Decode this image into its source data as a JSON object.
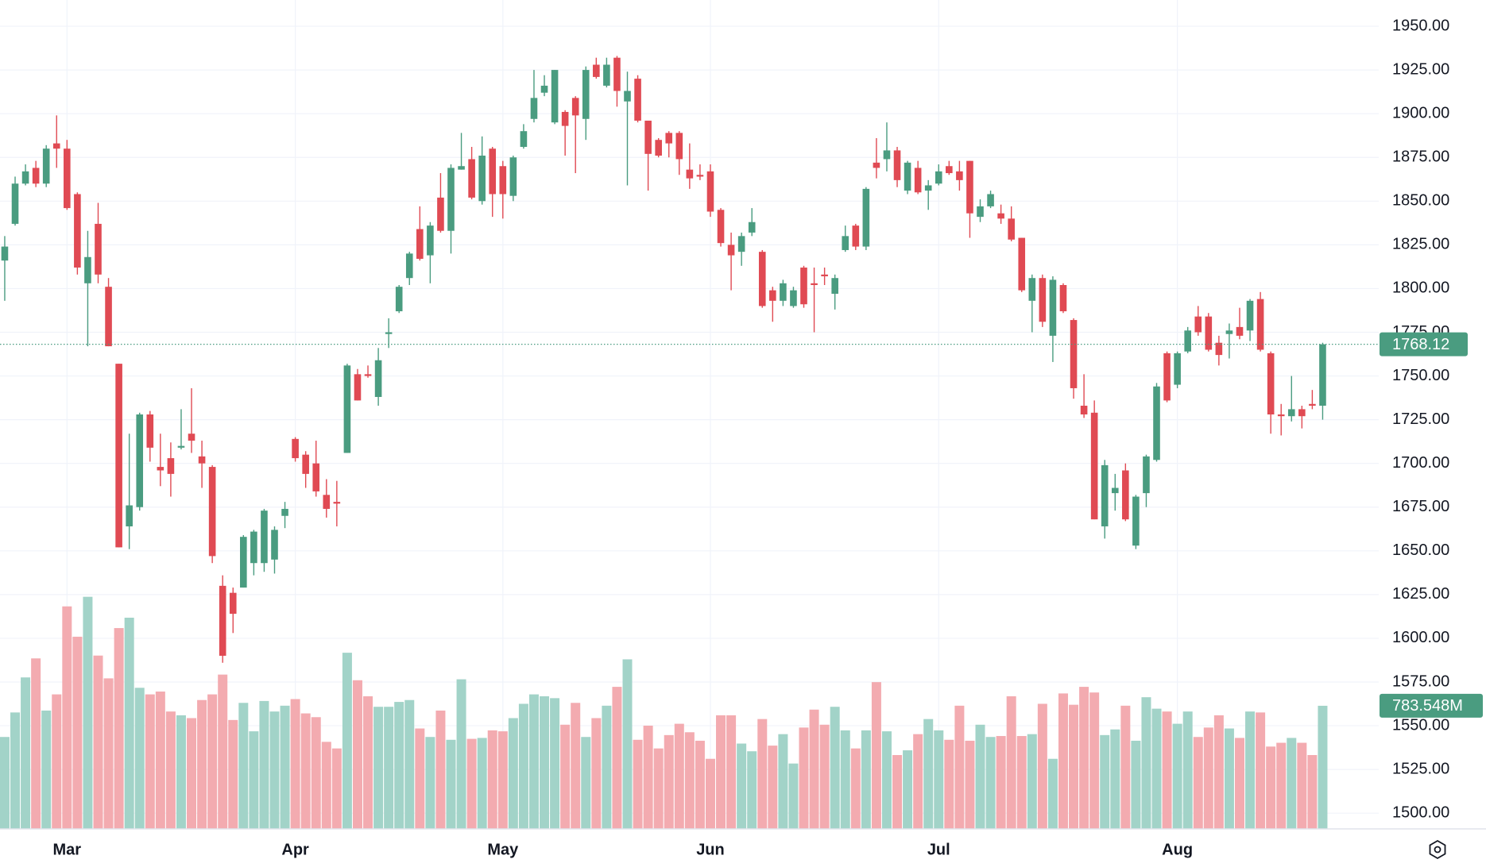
{
  "chart_data": {
    "type": "candlestick",
    "categories": [
      null,
      null,
      null,
      null,
      null,
      null,
      "Mar",
      null,
      null,
      null,
      null,
      null,
      null,
      null,
      null,
      null,
      null,
      null,
      null,
      null,
      null,
      null,
      null,
      null,
      null,
      null,
      null,
      null,
      "Apr",
      null,
      null,
      null,
      null,
      null,
      null,
      null,
      null,
      null,
      null,
      null,
      null,
      null,
      null,
      null,
      null,
      null,
      null,
      null,
      "May",
      null,
      null,
      null,
      null,
      null,
      null,
      null,
      null,
      null,
      null,
      null,
      null,
      null,
      null,
      null,
      null,
      null,
      null,
      null,
      "Jun",
      null,
      null,
      null,
      null,
      null,
      null,
      null,
      null,
      null,
      null,
      null,
      null,
      null,
      null,
      null,
      null,
      null,
      null,
      null,
      null,
      null,
      "Jul",
      null,
      null,
      null,
      null,
      null,
      null,
      null,
      null,
      null,
      null,
      null,
      null,
      null,
      null,
      null,
      null,
      null,
      null,
      null,
      null,
      null,
      null,
      "Aug",
      null,
      null,
      null,
      null,
      null,
      null,
      null,
      null,
      null,
      null,
      null,
      null,
      null,
      null
    ],
    "open": [
      1816,
      1837,
      1860,
      1869,
      1860,
      1883,
      1880,
      1854,
      1803,
      1837,
      1801,
      1757,
      1664,
      1675,
      1728,
      1698,
      1703,
      1709,
      1717,
      1704,
      1698,
      1630,
      1626,
      1629,
      1643,
      1643,
      1645,
      1670,
      1714,
      1705,
      1700,
      1682,
      1678,
      1706,
      1751,
      1751,
      1738,
      1774,
      1787,
      1806,
      1834,
      1819,
      1852,
      1833,
      1868,
      1874,
      1850,
      1880,
      1870,
      1853,
      1881,
      1897,
      1912,
      1895,
      1901,
      1909,
      1897,
      1928,
      1916,
      1932,
      1907,
      1920,
      1896,
      1885,
      1889,
      1889,
      1868,
      1865,
      1867,
      1845,
      1825,
      1821,
      1832,
      1821,
      1799,
      1793,
      1790,
      1812,
      1803,
      1808,
      1797,
      1822,
      1836,
      1824,
      1872,
      1874,
      1879,
      1856,
      1869,
      1856,
      1860,
      1870,
      1867,
      1873,
      1841,
      1847,
      1843,
      1840,
      1829,
      1793,
      1806,
      1773,
      1802,
      1782,
      1733,
      1729,
      1664,
      1683,
      1696,
      1653,
      1683,
      1702,
      1763,
      1745,
      1764,
      1784,
      1784,
      1769,
      1774,
      1778,
      1776,
      1794,
      1763,
      1728,
      1727,
      1731,
      1734,
      1733
    ],
    "high": [
      1830,
      1864,
      1871,
      1873,
      1882,
      1899,
      1885,
      1855,
      1833,
      1849,
      1806,
      1757,
      1717,
      1729,
      1730,
      1717,
      1712,
      1731,
      1743,
      1713,
      1699,
      1636,
      1629,
      1659,
      1662,
      1674,
      1664,
      1678,
      1715,
      1707,
      1713,
      1691,
      1690,
      1757,
      1754,
      1756,
      1766,
      1783,
      1802,
      1821,
      1847,
      1838,
      1866,
      1871,
      1889,
      1881,
      1887,
      1881,
      1873,
      1876,
      1894,
      1925,
      1922,
      1925,
      1902,
      1910,
      1927,
      1932,
      1932,
      1933,
      1924,
      1922,
      1896,
      1886,
      1890,
      1890,
      1883,
      1871,
      1871,
      1846,
      1832,
      1832,
      1846,
      1822,
      1801,
      1805,
      1801,
      1813,
      1812,
      1812,
      1808,
      1836,
      1837,
      1858,
      1886,
      1895,
      1881,
      1873,
      1873,
      1862,
      1871,
      1873,
      1873,
      1873,
      1851,
      1856,
      1848,
      1847,
      1829,
      1808,
      1808,
      1807,
      1803,
      1783,
      1751,
      1736,
      1702,
      1694,
      1700,
      1682,
      1705,
      1746,
      1764,
      1764,
      1778,
      1790,
      1786,
      1773,
      1780,
      1789,
      1794,
      1798,
      1764,
      1734,
      1750,
      1733,
      1742,
      1769
    ],
    "low": [
      1793,
      1836,
      1859,
      1858,
      1858,
      1869,
      1845,
      1808,
      1767,
      1803,
      1767,
      1652,
      1651,
      1673,
      1701,
      1687,
      1681,
      1708,
      1706,
      1686,
      1643,
      1586,
      1603,
      1629,
      1636,
      1638,
      1637,
      1663,
      1701,
      1686,
      1681,
      1669,
      1664,
      1706,
      1736,
      1749,
      1733,
      1766,
      1786,
      1802,
      1816,
      1803,
      1832,
      1820,
      1868,
      1851,
      1848,
      1841,
      1840,
      1850,
      1880,
      1895,
      1910,
      1894,
      1876,
      1866,
      1885,
      1920,
      1915,
      1904,
      1859,
      1895,
      1856,
      1875,
      1875,
      1865,
      1857,
      1862,
      1841,
      1824,
      1799,
      1813,
      1830,
      1789,
      1781,
      1790,
      1789,
      1789,
      1775,
      1802,
      1788,
      1821,
      1822,
      1822,
      1863,
      1867,
      1858,
      1854,
      1854,
      1845,
      1859,
      1865,
      1856,
      1829,
      1838,
      1846,
      1837,
      1827,
      1798,
      1775,
      1778,
      1758,
      1786,
      1737,
      1726,
      1668,
      1657,
      1673,
      1667,
      1651,
      1675,
      1701,
      1735,
      1743,
      1763,
      1773,
      1764,
      1756,
      1760,
      1771,
      1770,
      1764,
      1717,
      1716,
      1724,
      1720,
      1731,
      1725
    ],
    "close": [
      1824,
      1860,
      1867,
      1860,
      1880,
      1880,
      1846,
      1812,
      1818,
      1808,
      1767,
      1652,
      1676,
      1728,
      1709,
      1696,
      1694,
      1710,
      1713,
      1700,
      1647,
      1590,
      1614,
      1658,
      1661,
      1673,
      1662,
      1674,
      1703,
      1694,
      1684,
      1674,
      1677,
      1756,
      1736,
      1750,
      1759,
      1775,
      1801,
      1820,
      1817,
      1836,
      1833,
      1869,
      1870,
      1852,
      1876,
      1854,
      1854,
      1875,
      1890,
      1909,
      1916,
      1925,
      1893,
      1899,
      1925,
      1921,
      1928,
      1913,
      1913,
      1896,
      1877,
      1876,
      1883,
      1874,
      1863,
      1864,
      1844,
      1826,
      1819,
      1830,
      1838,
      1790,
      1793,
      1803,
      1799,
      1791,
      1802,
      1807,
      1806,
      1830,
      1824,
      1857,
      1869,
      1879,
      1862,
      1872,
      1855,
      1859,
      1867,
      1866,
      1862,
      1843,
      1847,
      1854,
      1840,
      1828,
      1799,
      1806,
      1781,
      1805,
      1787,
      1743,
      1728,
      1668,
      1699,
      1686,
      1668,
      1681,
      1704,
      1744,
      1736,
      1763,
      1776,
      1775,
      1765,
      1762,
      1776,
      1773,
      1793,
      1765,
      1728,
      1727,
      1731,
      1727,
      1733,
      1768.12
    ],
    "volume": [
      585,
      741,
      964,
      1085,
      753,
      856,
      1416,
      1223,
      1477,
      1103,
      958,
      1278,
      1344,
      898,
      856,
      874,
      747,
      723,
      705,
      820,
      856,
      982,
      693,
      802,
      621,
      814,
      747,
      784,
      826,
      735,
      711,
      554,
      512,
      1121,
      946,
      844,
      777,
      777,
      808,
      820,
      639,
      585,
      753,
      567,
      952,
      573,
      579,
      627,
      621,
      705,
      796,
      856,
      844,
      832,
      663,
      802,
      585,
      705,
      784,
      904,
      1079,
      567,
      657,
      512,
      597,
      669,
      615,
      561,
      446,
      723,
      723,
      543,
      494,
      699,
      530,
      603,
      416,
      645,
      759,
      663,
      777,
      627,
      512,
      627,
      934,
      621,
      470,
      500,
      603,
      699,
      627,
      567,
      784,
      561,
      663,
      585,
      591,
      844,
      591,
      603,
      796,
      446,
      862,
      790,
      904,
      868,
      597,
      633,
      784,
      561,
      838,
      765,
      747,
      669,
      747,
      585,
      645,
      723,
      639,
      579,
      747,
      741,
      524,
      548,
      579,
      548,
      470,
      783.548
    ],
    "volume_label": "783.548M",
    "ylim": [
      1491,
      1965
    ],
    "yticks": [
      {
        "value": 1500,
        "label": "1500.00"
      },
      {
        "value": 1525,
        "label": "1525.00"
      },
      {
        "value": 1550,
        "label": "1550.00"
      },
      {
        "value": 1575,
        "label": "1575.00"
      },
      {
        "value": 1600,
        "label": "1600.00"
      },
      {
        "value": 1625,
        "label": "1625.00"
      },
      {
        "value": 1650,
        "label": "1650.00"
      },
      {
        "value": 1675,
        "label": "1675.00"
      },
      {
        "value": 1700,
        "label": "1700.00"
      },
      {
        "value": 1725,
        "label": "1725.00"
      },
      {
        "value": 1750,
        "label": "1750.00"
      },
      {
        "value": 1775,
        "label": "1775.00"
      },
      {
        "value": 1800,
        "label": "1800.00"
      },
      {
        "value": 1825,
        "label": "1825.00"
      },
      {
        "value": 1850,
        "label": "1850.00"
      },
      {
        "value": 1875,
        "label": "1875.00"
      },
      {
        "value": 1900,
        "label": "1900.00"
      },
      {
        "value": 1925,
        "label": "1925.00"
      },
      {
        "value": 1950,
        "label": "1950.00"
      }
    ],
    "grid": true,
    "up_color": "#4a9c80",
    "down_color": "#e04a53",
    "volume_up_color": "#a2d3c8",
    "volume_down_color": "#f3abb0"
  }
}
